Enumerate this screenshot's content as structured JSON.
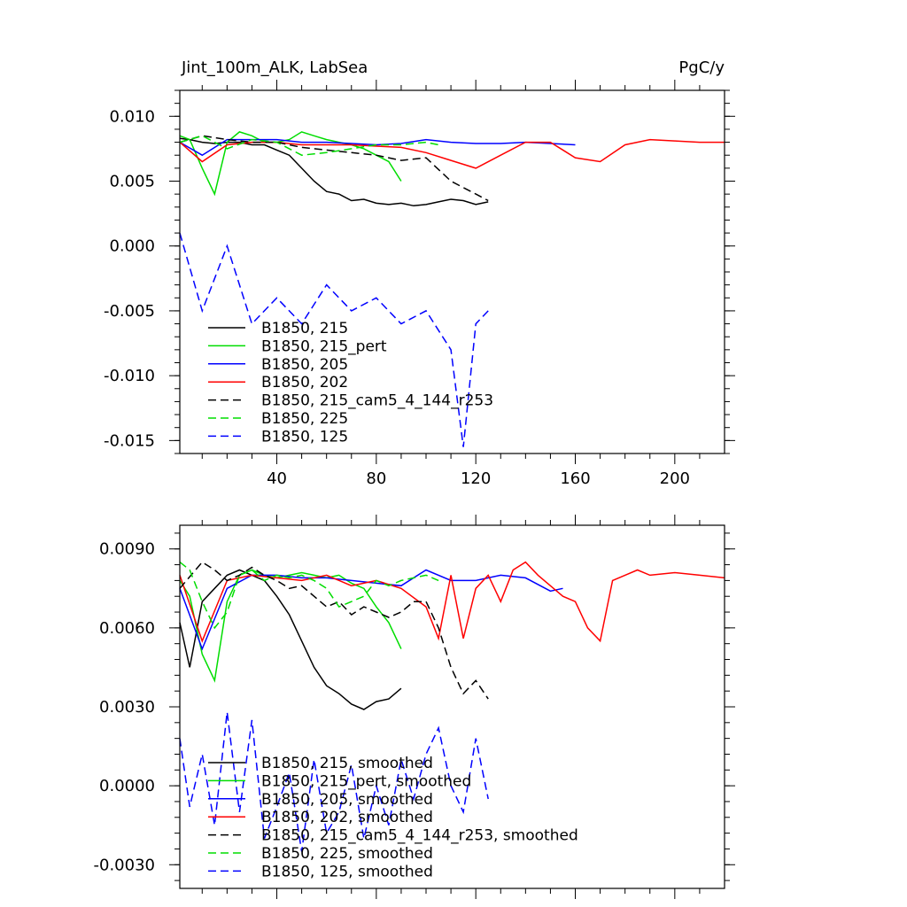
{
  "chart_data": [
    {
      "type": "line",
      "title": "Jint_100m_ALK, LabSea",
      "units": "PgC/y",
      "xlim": [
        1,
        220
      ],
      "ylim": [
        -0.016,
        0.012
      ],
      "xticks": [
        40,
        80,
        120,
        160,
        200
      ],
      "xtick_labels": [
        "40",
        "80",
        "120",
        "160",
        "200"
      ],
      "yticks": [
        0.01,
        0.005,
        0.0,
        -0.005,
        -0.01,
        -0.015
      ],
      "ytick_labels": [
        "0.010",
        "0.005",
        "0.000",
        "-0.005",
        "-0.010",
        "-0.015"
      ],
      "series": [
        {
          "name": "B1850, 215",
          "color": "#000000",
          "dash": "solid",
          "x": [
            1,
            5,
            10,
            15,
            20,
            25,
            30,
            35,
            40,
            45,
            50,
            55,
            60,
            65,
            70,
            75,
            80,
            85,
            90,
            95,
            100,
            105,
            110,
            115,
            120,
            125
          ],
          "values": [
            0.0083,
            0.0082,
            0.008,
            0.0079,
            0.008,
            0.008,
            0.0078,
            0.0078,
            0.0074,
            0.007,
            0.006,
            0.005,
            0.0042,
            0.004,
            0.0035,
            0.0036,
            0.0033,
            0.0032,
            0.0033,
            0.0031,
            0.0032,
            0.0034,
            0.0036,
            0.0035,
            0.0032,
            0.0034
          ]
        },
        {
          "name": "B1850, 215_pert",
          "color": "#00dd00",
          "dash": "solid",
          "x": [
            1,
            5,
            10,
            15,
            20,
            25,
            30,
            35,
            40,
            45,
            50,
            55,
            60,
            65,
            70,
            75,
            80,
            85,
            90
          ],
          "values": [
            0.0085,
            0.0082,
            0.006,
            0.004,
            0.008,
            0.0088,
            0.0085,
            0.008,
            0.008,
            0.0082,
            0.0088,
            0.0085,
            0.0082,
            0.008,
            0.0078,
            0.0075,
            0.007,
            0.0065,
            0.005
          ]
        },
        {
          "name": "B1850, 205",
          "color": "#0000ff",
          "dash": "solid",
          "x": [
            1,
            10,
            20,
            30,
            40,
            50,
            60,
            70,
            80,
            90,
            100,
            110,
            120,
            130,
            140,
            150,
            160
          ],
          "values": [
            0.008,
            0.007,
            0.0082,
            0.0082,
            0.0082,
            0.008,
            0.008,
            0.0079,
            0.0078,
            0.0079,
            0.0082,
            0.008,
            0.0079,
            0.0079,
            0.008,
            0.0079,
            0.0078
          ]
        },
        {
          "name": "B1850, 202",
          "color": "#ff0000",
          "dash": "solid",
          "x": [
            1,
            10,
            20,
            30,
            40,
            50,
            60,
            70,
            80,
            90,
            100,
            110,
            120,
            130,
            140,
            150,
            160,
            170,
            180,
            190,
            200,
            210,
            220
          ],
          "values": [
            0.008,
            0.0065,
            0.0078,
            0.008,
            0.008,
            0.0078,
            0.0078,
            0.0078,
            0.0077,
            0.0076,
            0.0072,
            0.0066,
            0.006,
            0.007,
            0.008,
            0.008,
            0.0068,
            0.0065,
            0.0078,
            0.0082,
            0.0081,
            0.008,
            0.008
          ]
        },
        {
          "name": "B1850, 215_cam5_4_144_r253",
          "color": "#000000",
          "dash": "dashed",
          "x": [
            1,
            10,
            20,
            30,
            40,
            50,
            60,
            70,
            80,
            90,
            100,
            110,
            120,
            125
          ],
          "values": [
            0.008,
            0.0085,
            0.0082,
            0.008,
            0.008,
            0.0076,
            0.0074,
            0.0072,
            0.007,
            0.0066,
            0.0068,
            0.005,
            0.004,
            0.0035
          ]
        },
        {
          "name": "B1850, 225",
          "color": "#00dd00",
          "dash": "dashed",
          "x": [
            1,
            10,
            20,
            30,
            40,
            50,
            60,
            70,
            80,
            90,
            100,
            105
          ],
          "values": [
            0.008,
            0.0085,
            0.0075,
            0.0082,
            0.008,
            0.007,
            0.0072,
            0.0075,
            0.0078,
            0.0078,
            0.008,
            0.0078
          ]
        },
        {
          "name": "B1850, 125",
          "color": "#0000ff",
          "dash": "dashed",
          "x": [
            1,
            10,
            20,
            30,
            40,
            50,
            60,
            70,
            80,
            90,
            100,
            110,
            115,
            120,
            125
          ],
          "values": [
            0.001,
            -0.005,
            0.0,
            -0.006,
            -0.004,
            -0.006,
            -0.003,
            -0.005,
            -0.004,
            -0.006,
            -0.005,
            -0.008,
            -0.0155,
            -0.006,
            -0.005
          ]
        }
      ]
    },
    {
      "type": "line",
      "title": "",
      "xlim": [
        1,
        220
      ],
      "ylim": [
        -0.0039,
        0.0099
      ],
      "xticks": [
        40,
        80,
        120,
        160,
        200
      ],
      "xtick_labels": [
        "",
        "",
        "",
        "",
        ""
      ],
      "yticks": [
        0.009,
        0.006,
        0.003,
        0.0,
        -0.003
      ],
      "ytick_labels": [
        "0.0090",
        "0.0060",
        "0.0030",
        "0.0000",
        "-0.0030"
      ],
      "series": [
        {
          "name": "B1850, 215, smoothed",
          "color": "#000000",
          "dash": "solid",
          "x": [
            1,
            5,
            10,
            15,
            20,
            25,
            30,
            35,
            40,
            45,
            50,
            55,
            60,
            65,
            70,
            75,
            80,
            85,
            90
          ],
          "values": [
            0.0062,
            0.0045,
            0.007,
            0.0075,
            0.008,
            0.0082,
            0.008,
            0.0078,
            0.0072,
            0.0065,
            0.0055,
            0.0045,
            0.0038,
            0.0035,
            0.0031,
            0.0029,
            0.0032,
            0.0033,
            0.0037
          ]
        },
        {
          "name": "B1850, 215_pert, smoothed",
          "color": "#00dd00",
          "dash": "solid",
          "x": [
            1,
            5,
            10,
            15,
            20,
            25,
            30,
            35,
            40,
            45,
            50,
            55,
            60,
            65,
            70,
            75,
            80,
            85,
            90
          ],
          "values": [
            0.0078,
            0.0072,
            0.005,
            0.004,
            0.007,
            0.008,
            0.0082,
            0.008,
            0.0079,
            0.008,
            0.0081,
            0.008,
            0.0079,
            0.008,
            0.0077,
            0.0075,
            0.0068,
            0.0062,
            0.0052
          ]
        },
        {
          "name": "B1850, 205, smoothed",
          "color": "#0000ff",
          "dash": "solid",
          "x": [
            1,
            10,
            20,
            30,
            40,
            50,
            60,
            70,
            80,
            90,
            100,
            110,
            120,
            130,
            140,
            150,
            155
          ],
          "values": [
            0.0075,
            0.0052,
            0.0075,
            0.008,
            0.008,
            0.0079,
            0.0079,
            0.0078,
            0.0077,
            0.0076,
            0.0082,
            0.0078,
            0.0078,
            0.008,
            0.0079,
            0.0074,
            0.0075
          ]
        },
        {
          "name": "B1850, 202, smoothed",
          "color": "#ff0000",
          "dash": "solid",
          "x": [
            1,
            10,
            20,
            30,
            40,
            50,
            60,
            70,
            80,
            90,
            100,
            105,
            110,
            115,
            120,
            125,
            130,
            135,
            140,
            145,
            150,
            155,
            160,
            165,
            170,
            175,
            180,
            185,
            190,
            200,
            210,
            220
          ],
          "values": [
            0.008,
            0.0055,
            0.0078,
            0.008,
            0.0079,
            0.0078,
            0.008,
            0.0076,
            0.0078,
            0.0075,
            0.0068,
            0.0056,
            0.008,
            0.0056,
            0.0075,
            0.008,
            0.007,
            0.0082,
            0.0085,
            0.008,
            0.0076,
            0.0072,
            0.007,
            0.006,
            0.0055,
            0.0078,
            0.008,
            0.0082,
            0.008,
            0.0081,
            0.008,
            0.0079
          ]
        },
        {
          "name": "B1850, 215_cam5_4_144_r253, smoothed",
          "color": "#000000",
          "dash": "dashed",
          "x": [
            1,
            10,
            15,
            20,
            25,
            30,
            35,
            40,
            45,
            50,
            55,
            60,
            65,
            70,
            75,
            80,
            85,
            90,
            95,
            100,
            105,
            110,
            115,
            120,
            125
          ],
          "values": [
            0.0075,
            0.0085,
            0.0082,
            0.0078,
            0.008,
            0.0083,
            0.008,
            0.0078,
            0.0075,
            0.0076,
            0.0072,
            0.0068,
            0.007,
            0.0065,
            0.0068,
            0.0066,
            0.0064,
            0.0066,
            0.007,
            0.007,
            0.006,
            0.0045,
            0.0035,
            0.004,
            0.0033
          ]
        },
        {
          "name": "B1850, 225, smoothed",
          "color": "#00dd00",
          "dash": "dashed",
          "x": [
            1,
            5,
            10,
            15,
            20,
            25,
            30,
            35,
            40,
            45,
            50,
            55,
            60,
            65,
            70,
            75,
            80,
            85,
            90,
            95,
            100,
            105
          ],
          "values": [
            0.0085,
            0.0082,
            0.007,
            0.006,
            0.0066,
            0.008,
            0.0082,
            0.0078,
            0.008,
            0.0079,
            0.008,
            0.0078,
            0.0075,
            0.0068,
            0.007,
            0.0072,
            0.0078,
            0.0076,
            0.0078,
            0.0079,
            0.008,
            0.0078
          ]
        },
        {
          "name": "B1850, 125, smoothed",
          "color": "#0000ff",
          "dash": "dashed",
          "x": [
            1,
            5,
            10,
            15,
            20,
            25,
            30,
            35,
            40,
            45,
            50,
            55,
            60,
            65,
            70,
            75,
            80,
            85,
            90,
            95,
            100,
            105,
            110,
            115,
            120,
            125
          ],
          "values": [
            0.0018,
            -0.0008,
            0.0012,
            -0.0015,
            0.0028,
            -0.001,
            0.0025,
            -0.002,
            -0.0008,
            0.0005,
            -0.0025,
            0.001,
            -0.0018,
            -0.001,
            0.0008,
            -0.002,
            0.0,
            -0.0015,
            0.001,
            -0.0005,
            0.0012,
            0.0022,
            0.0,
            -0.001,
            0.0018,
            -0.0005
          ]
        }
      ]
    }
  ]
}
